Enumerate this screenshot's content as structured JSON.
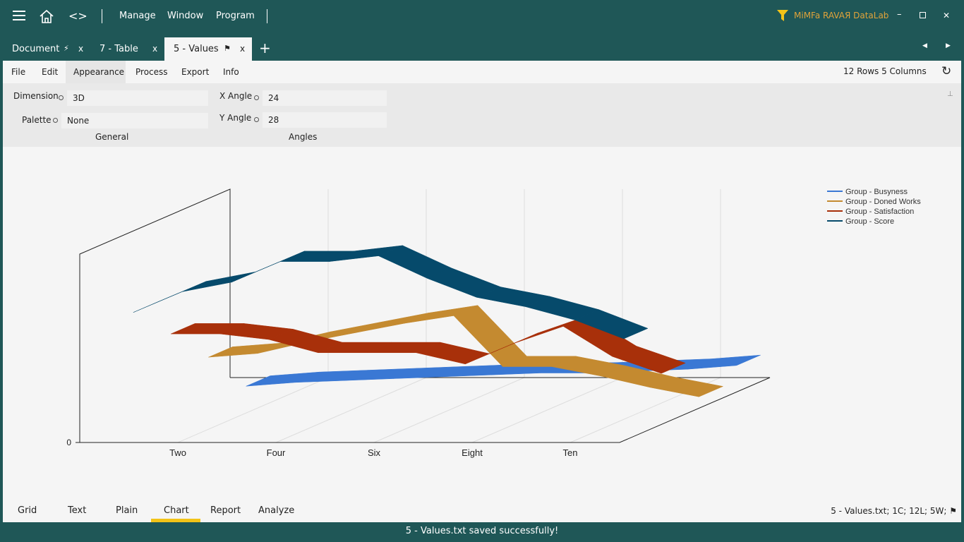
{
  "header": {
    "nav": [
      "Manage",
      "Window",
      "Program"
    ],
    "brand": "MiMFa RAVAЯ DataLab"
  },
  "tabs": [
    {
      "label": "Document",
      "icon": "⚡"
    },
    {
      "label": "7 - Table",
      "icon": ""
    },
    {
      "label": "5 - Values",
      "icon": "⚑"
    }
  ],
  "menubar": {
    "items": [
      "File",
      "Edit",
      "Appearance",
      "Process",
      "Export",
      "Info"
    ],
    "info": "12 Rows 5 Columns"
  },
  "ribbon": {
    "general": {
      "title": "General",
      "dimension_label": "Dimension",
      "dimension": "3D",
      "palette_label": "Palette",
      "palette": "None"
    },
    "angles": {
      "title": "Angles",
      "x_label": "X Angle",
      "x": "24",
      "y_label": "Y Angle",
      "y": "28"
    }
  },
  "chart_data": {
    "type": "line",
    "dimension": "3D",
    "categories": [
      null,
      "Two",
      null,
      "Four",
      null,
      "Six",
      null,
      "Eight",
      null,
      "Ten",
      null
    ],
    "series": [
      {
        "name": "Group - Busyness",
        "color": "#3a78d4",
        "values": [
          3,
          5,
          6,
          7,
          8,
          9,
          10,
          10,
          11,
          12,
          14
        ]
      },
      {
        "name": "Group - Doned Works",
        "color": "#c48a30",
        "values": [
          27,
          29,
          35,
          40,
          45,
          49,
          22,
          22,
          17,
          11,
          6
        ]
      },
      {
        "name": "Group - Satisfaction",
        "color": "#a8300a",
        "values": [
          48,
          48,
          45,
          38,
          38,
          38,
          32,
          43,
          52,
          36,
          27
        ]
      },
      {
        "name": "Group - Score",
        "color": "#064a6b",
        "values": [
          68,
          79,
          84,
          95,
          95,
          98,
          86,
          76,
          71,
          64,
          54
        ]
      }
    ],
    "ylim": [
      0,
      100
    ],
    "yticks": [
      0
    ],
    "legend": "top-right"
  },
  "bottom_tabs": [
    "Grid",
    "Text",
    "Plain",
    "Chart",
    "Report",
    "Analyze"
  ],
  "file_info": "5 - Values.txt; 1C; 12L; 5W; ⚑",
  "status": "5 - Values.txt saved successfully!"
}
